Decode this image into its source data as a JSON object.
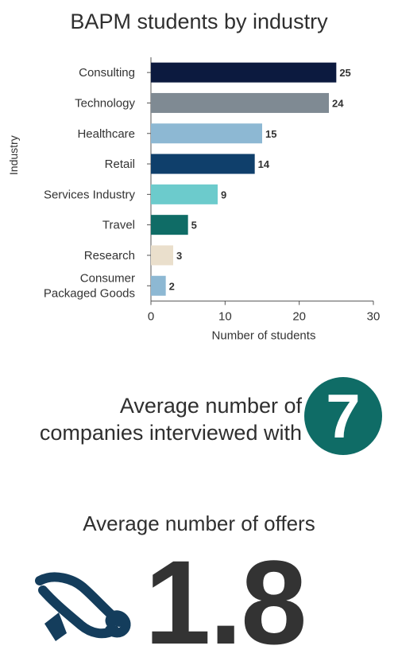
{
  "chart_data": {
    "type": "bar",
    "orientation": "horizontal",
    "title": "BAPM students by industry",
    "xlabel": "Number of students",
    "ylabel": "Industry",
    "categories": [
      "Consulting",
      "Technology",
      "Healthcare",
      "Retail",
      "Services Industry",
      "Travel",
      "Research",
      "Consumer Packaged Goods"
    ],
    "values": [
      25,
      24,
      15,
      14,
      9,
      5,
      3,
      2
    ],
    "colors": [
      "#0c1a3f",
      "#7f8a93",
      "#8db8d3",
      "#0f3f6b",
      "#6ccbcc",
      "#0f6c66",
      "#eadfcc",
      "#8db8d3"
    ],
    "xlim": [
      0,
      30
    ],
    "xticks": [
      0,
      10,
      20,
      30
    ],
    "data_labels": true,
    "grid": false
  },
  "stats": {
    "companies_label": "Average number of companies interviewed with",
    "companies_value": "7",
    "offers_label": "Average number of offers",
    "offers_value": "1.8",
    "accent_color": "#0f6c66"
  }
}
